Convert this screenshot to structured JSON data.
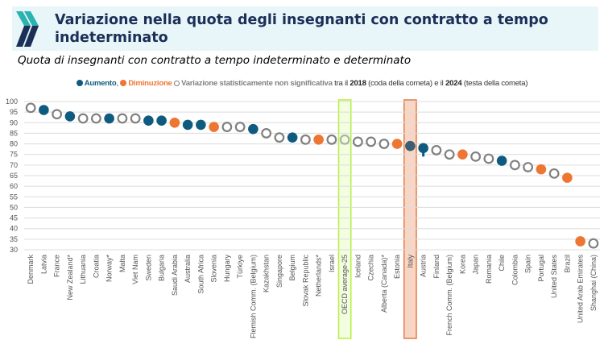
{
  "header": {
    "title": "Variazione nella quota degli insegnanti con contratto a tempo indeterminato",
    "subtitle": "Quota di insegnanti con contratto a tempo indeterminato e determinato",
    "logo": "oecd-chevrons-icon"
  },
  "legend": {
    "increase_label": "Aumento",
    "separator": ",",
    "decrease_label": "Diminuzione",
    "ns_label": "Variazione statisticamente non significativa",
    "text_between": "tra il",
    "year_start": "2018",
    "tail_label": "(coda della cometa)",
    "text_and": "e il",
    "year_end": "2024",
    "head_label": "(testa della cometa)"
  },
  "colors": {
    "increase": "#0f5b7f",
    "decrease": "#ed7632",
    "not_significant": "#808080",
    "oecd_highlight_fill": "#f3fde0",
    "oecd_highlight_border": "#b5f03c",
    "italy_highlight_fill": "#f8d6c6",
    "italy_highlight_border": "#e57b46",
    "italy_point": "#3d5f73",
    "banner": "#e8f5f9",
    "title": "#1b2f57"
  },
  "chart_data": {
    "type": "scatter",
    "title": "Quota di insegnanti con contratto a tempo indeterminato e determinato",
    "xlabel": "",
    "ylabel": "",
    "ylim": [
      30,
      100
    ],
    "yticks": [
      100,
      95,
      90,
      85,
      80,
      75,
      70,
      65,
      60,
      55,
      50,
      45,
      40,
      35,
      30
    ],
    "grid": true,
    "legend_position": "top",
    "highlighted": [
      "OECD average-25",
      "Italy"
    ],
    "categories": [
      "Denmark",
      "Latvia",
      "France",
      "New Zealand*",
      "Lithuania",
      "Croatia",
      "Norway*",
      "Malta",
      "Viet Nam",
      "Sweden",
      "Bulgaria",
      "Saudi Arabia",
      "Australia",
      "South Africa",
      "Slovenia",
      "Hungary",
      "Türkiye",
      "Flemish Comm. (Belgium)",
      "Kazakhstan",
      "Singapore",
      "Belgium",
      "Slovak Republic",
      "Netherlands*",
      "Israel",
      "OECD average-25",
      "Iceland",
      "Czechia",
      "Alberta (Canada)*",
      "Estonia",
      "Italy",
      "Austria",
      "Finland",
      "French Comm. (Belgium)",
      "Korea",
      "Japan",
      "Romania",
      "Chile",
      "Colombia",
      "Spain",
      "Portugal",
      "United States",
      "Brazil",
      "United Arab Emirates",
      "Shanghai (China)"
    ],
    "values_2024": [
      97,
      96,
      94,
      93,
      92,
      92,
      92,
      92,
      92,
      91,
      91,
      90,
      89,
      89,
      88,
      88,
      88,
      87,
      85,
      83,
      83,
      82,
      82,
      82,
      82,
      81,
      81,
      80,
      80,
      79,
      78,
      77,
      75,
      75,
      74,
      73,
      72,
      70,
      69,
      68,
      66,
      64,
      34,
      33
    ],
    "values_2018": [
      null,
      null,
      null,
      null,
      null,
      null,
      null,
      null,
      null,
      null,
      null,
      null,
      null,
      null,
      null,
      null,
      null,
      null,
      null,
      null,
      null,
      null,
      null,
      null,
      null,
      null,
      null,
      null,
      null,
      null,
      74,
      null,
      null,
      null,
      null,
      null,
      null,
      null,
      null,
      null,
      null,
      null,
      null,
      null
    ],
    "change": [
      "ns",
      "increase",
      "ns",
      "increase",
      "ns",
      "ns",
      "increase",
      "ns",
      "ns",
      "increase",
      "increase",
      "decrease",
      "increase",
      "increase",
      "decrease",
      "ns",
      "ns",
      "increase",
      "ns",
      "ns",
      "increase",
      "ns",
      "decrease",
      "ns",
      "ns",
      "ns",
      "ns",
      "ns",
      "decrease",
      "italy",
      "increase",
      "ns",
      "ns",
      "decrease",
      "ns",
      "ns",
      "increase",
      "ns",
      "ns",
      "decrease",
      "ns",
      "decrease",
      "decrease",
      "ns"
    ]
  }
}
